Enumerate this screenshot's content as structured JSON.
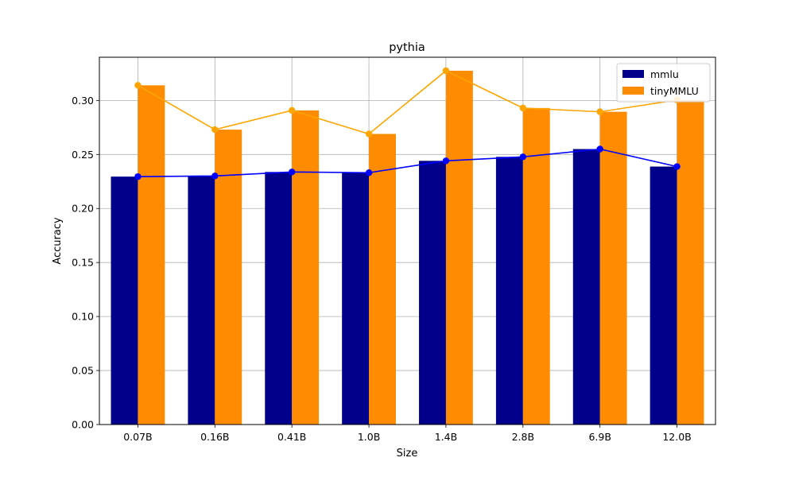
{
  "chart_data": {
    "type": "bar",
    "title": "pythia",
    "xlabel": "Size",
    "ylabel": "Accuracy",
    "categories": [
      "0.07B",
      "0.16B",
      "0.41B",
      "1.0B",
      "1.4B",
      "2.8B",
      "6.9B",
      "12.0B"
    ],
    "ylim": [
      0,
      0.34
    ],
    "yticks": [
      "0.00",
      "0.05",
      "0.10",
      "0.15",
      "0.20",
      "0.25",
      "0.30"
    ],
    "grid": true,
    "legend_position": "top-right",
    "series": [
      {
        "name": "mmlu",
        "bar_color": "#00008b",
        "line_color": "#0000ff",
        "values": [
          0.2295,
          0.2301,
          0.2338,
          0.2331,
          0.2441,
          0.2478,
          0.255,
          0.2388
        ]
      },
      {
        "name": "tinyMMLU",
        "bar_color": "#ff8c00",
        "line_color": "#ffa500",
        "values": [
          0.314,
          0.273,
          0.2908,
          0.269,
          0.3275,
          0.293,
          0.2895,
          0.3004
        ]
      }
    ]
  }
}
